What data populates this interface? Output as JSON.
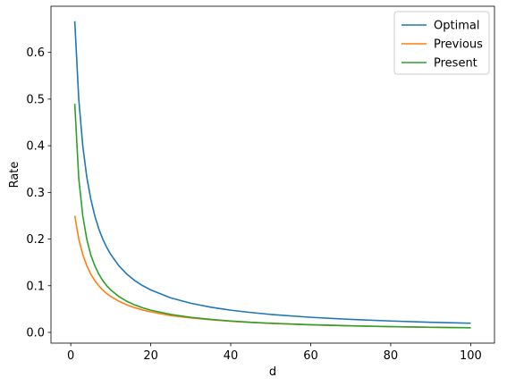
{
  "chart_data": {
    "type": "line",
    "xlabel": "d",
    "ylabel": "Rate",
    "xlim": [
      -4.95,
      105.95
    ],
    "ylim": [
      -0.023,
      0.699
    ],
    "xticks": [
      0,
      20,
      40,
      60,
      80,
      100
    ],
    "yticks": [
      0.0,
      0.1,
      0.2,
      0.3,
      0.4,
      0.5,
      0.6
    ],
    "ytick_labels": [
      "0.0",
      "0.1",
      "0.2",
      "0.3",
      "0.4",
      "0.5",
      "0.6"
    ],
    "grid": false,
    "legend": "top-right",
    "x": [
      1,
      2,
      3,
      4,
      5,
      6,
      7,
      8,
      9,
      10,
      12,
      14,
      16,
      18,
      20,
      25,
      30,
      35,
      40,
      45,
      50,
      60,
      70,
      80,
      90,
      100
    ],
    "series": [
      {
        "name": "Optimal",
        "color": "#1f77b4",
        "values": [
          0.667,
          0.5,
          0.4,
          0.333,
          0.286,
          0.25,
          0.222,
          0.2,
          0.182,
          0.167,
          0.143,
          0.125,
          0.111,
          0.1,
          0.091,
          0.074,
          0.0625,
          0.054,
          0.0476,
          0.0426,
          0.0385,
          0.0323,
          0.0278,
          0.0244,
          0.0217,
          0.0196
        ]
      },
      {
        "name": "Previous",
        "color": "#ff7f0e",
        "values": [
          0.25,
          0.2,
          0.167,
          0.143,
          0.125,
          0.111,
          0.1,
          0.091,
          0.083,
          0.077,
          0.067,
          0.059,
          0.053,
          0.048,
          0.044,
          0.036,
          0.031,
          0.027,
          0.0238,
          0.0213,
          0.0192,
          0.0161,
          0.0139,
          0.0122,
          0.0109,
          0.0098
        ]
      },
      {
        "name": "Present",
        "color": "#2ca02c",
        "values": [
          0.49,
          0.33,
          0.25,
          0.2,
          0.166,
          0.143,
          0.125,
          0.111,
          0.1,
          0.091,
          0.077,
          0.0667,
          0.0588,
          0.0526,
          0.0476,
          0.0385,
          0.0323,
          0.0278,
          0.0244,
          0.0217,
          0.0196,
          0.0164,
          0.0141,
          0.0123,
          0.011,
          0.0099
        ]
      }
    ]
  }
}
